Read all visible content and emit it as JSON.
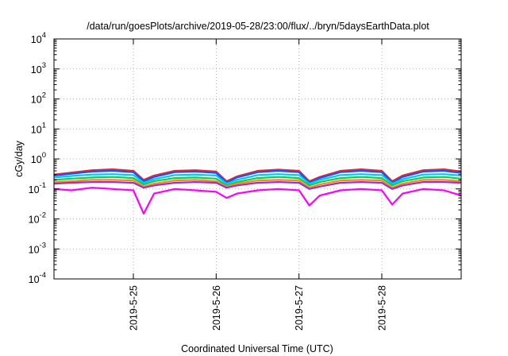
{
  "chart_data": {
    "type": "line",
    "title": "/data/run/goesPlots/archive/2019-05-28/23:00/flux/../bryn/5daysEarthData.plot",
    "xlabel": "Coordinated Universal Time (UTC)",
    "ylabel": "cGy/day",
    "y_scale": "log",
    "ylim": [
      0.0001,
      10000
    ],
    "xlim": [
      "2019-05-24T01:00",
      "2019-05-28T23:00"
    ],
    "x_ticks": [
      "2019-5-25",
      "2019-5-26",
      "2019-5-27",
      "2019-5-28"
    ],
    "y_ticks": [
      {
        "base": "10",
        "exp": "-4"
      },
      {
        "base": "10",
        "exp": "-3"
      },
      {
        "base": "10",
        "exp": "-2"
      },
      {
        "base": "10",
        "exp": "-1"
      },
      {
        "base": "10",
        "exp": "0"
      },
      {
        "base": "10",
        "exp": "1"
      },
      {
        "base": "10",
        "exp": "2"
      },
      {
        "base": "10",
        "exp": "3"
      },
      {
        "base": "10",
        "exp": "4"
      }
    ],
    "grid": true,
    "x": [
      "2019-05-24T01:00",
      "2019-05-24T06:00",
      "2019-05-24T12:00",
      "2019-05-24T18:00",
      "2019-05-25T00:00",
      "2019-05-25T03:00",
      "2019-05-25T06:00",
      "2019-05-25T12:00",
      "2019-05-25T18:00",
      "2019-05-26T00:00",
      "2019-05-26T03:00",
      "2019-05-26T06:00",
      "2019-05-26T12:00",
      "2019-05-26T18:00",
      "2019-05-27T00:00",
      "2019-05-27T03:00",
      "2019-05-27T06:00",
      "2019-05-27T12:00",
      "2019-05-27T18:00",
      "2019-05-28T00:00",
      "2019-05-28T03:00",
      "2019-05-28T06:00",
      "2019-05-28T12:00",
      "2019-05-28T18:00",
      "2019-05-28T23:00"
    ],
    "series": [
      {
        "color": "#e8281e",
        "values": [
          0.3,
          0.35,
          0.42,
          0.45,
          0.4,
          0.2,
          0.28,
          0.4,
          0.42,
          0.38,
          0.18,
          0.26,
          0.4,
          0.44,
          0.4,
          0.18,
          0.25,
          0.4,
          0.45,
          0.4,
          0.18,
          0.28,
          0.42,
          0.45,
          0.38
        ]
      },
      {
        "color": "#1f4fff",
        "values": [
          0.28,
          0.32,
          0.38,
          0.4,
          0.36,
          0.18,
          0.25,
          0.36,
          0.38,
          0.34,
          0.16,
          0.24,
          0.36,
          0.4,
          0.36,
          0.16,
          0.23,
          0.36,
          0.4,
          0.36,
          0.16,
          0.25,
          0.38,
          0.4,
          0.34
        ]
      },
      {
        "color": "#00c8ff",
        "values": [
          0.24,
          0.27,
          0.3,
          0.31,
          0.29,
          0.16,
          0.21,
          0.29,
          0.3,
          0.28,
          0.15,
          0.2,
          0.29,
          0.31,
          0.29,
          0.15,
          0.2,
          0.29,
          0.31,
          0.29,
          0.15,
          0.21,
          0.3,
          0.31,
          0.28
        ]
      },
      {
        "color": "#00d060",
        "values": [
          0.2,
          0.22,
          0.24,
          0.25,
          0.23,
          0.14,
          0.18,
          0.23,
          0.24,
          0.22,
          0.13,
          0.17,
          0.23,
          0.25,
          0.23,
          0.13,
          0.17,
          0.23,
          0.25,
          0.23,
          0.13,
          0.18,
          0.24,
          0.25,
          0.22
        ]
      },
      {
        "color": "#ff8a00",
        "values": [
          0.17,
          0.18,
          0.2,
          0.2,
          0.19,
          0.12,
          0.15,
          0.19,
          0.2,
          0.18,
          0.12,
          0.15,
          0.19,
          0.2,
          0.19,
          0.11,
          0.14,
          0.19,
          0.2,
          0.19,
          0.11,
          0.15,
          0.2,
          0.2,
          0.18
        ]
      },
      {
        "color": "#9b2fd6",
        "values": [
          0.15,
          0.16,
          0.17,
          0.17,
          0.16,
          0.11,
          0.13,
          0.16,
          0.17,
          0.16,
          0.11,
          0.13,
          0.16,
          0.17,
          0.16,
          0.1,
          0.12,
          0.16,
          0.17,
          0.16,
          0.1,
          0.13,
          0.17,
          0.17,
          0.16
        ]
      },
      {
        "color": "#ff00ff",
        "values": [
          0.1,
          0.09,
          0.11,
          0.1,
          0.09,
          0.015,
          0.07,
          0.1,
          0.09,
          0.08,
          0.05,
          0.07,
          0.09,
          0.1,
          0.09,
          0.028,
          0.06,
          0.09,
          0.1,
          0.09,
          0.03,
          0.07,
          0.1,
          0.09,
          0.06
        ]
      }
    ]
  }
}
